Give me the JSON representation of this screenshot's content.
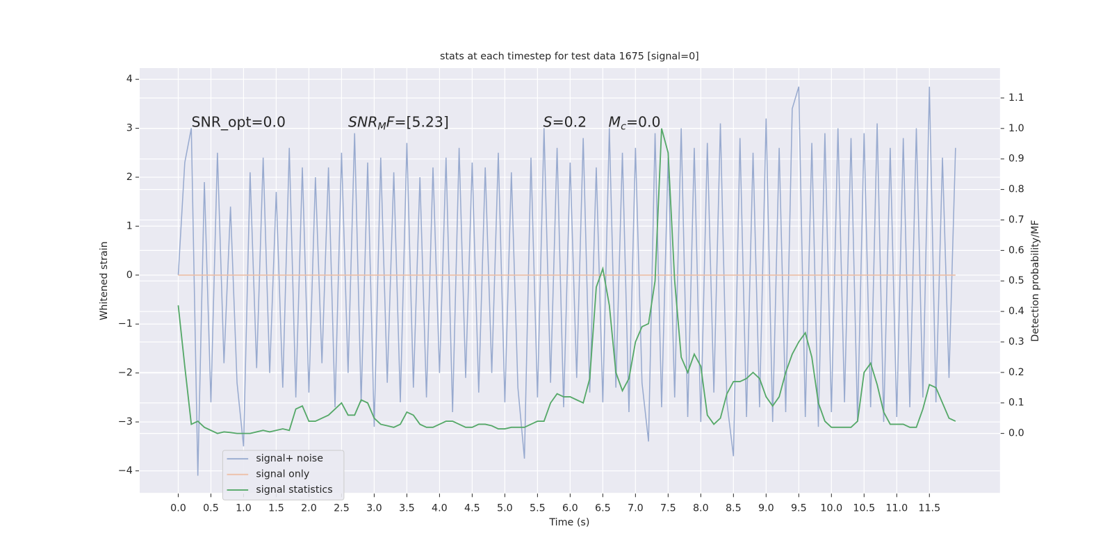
{
  "chart_data": {
    "type": "line",
    "title": "stats at each timestep for test data 1675 [signal=0]",
    "xlabel": "Time (s)",
    "ylabel": "Whitened strain",
    "y2label": "Detection probability/MF",
    "annotations": [
      {
        "text": "SNR_opt=0.0"
      },
      {
        "parts": [
          {
            "text": "SNR",
            "italic": true
          },
          {
            "text": "M",
            "italic": true,
            "sub": true
          },
          {
            "text": "F",
            "italic": true
          },
          {
            "text": "=[5.23]"
          }
        ]
      },
      {
        "parts": [
          {
            "text": "S",
            "italic": true
          },
          {
            "text": "=0.2"
          }
        ]
      },
      {
        "parts": [
          {
            "text": "M",
            "italic": true
          },
          {
            "text": "c",
            "italic": true,
            "sub": true
          },
          {
            "text": "=0.0"
          }
        ]
      }
    ],
    "xlim": [
      -0.59,
      12.58
    ],
    "ylim": [
      -4.45,
      4.23
    ],
    "y2lim": [
      -0.195,
      1.198
    ],
    "xticks": [
      {
        "value": 0,
        "label": "0.0"
      },
      0.5,
      {
        "value": 1,
        "label": "1.0"
      },
      1.5,
      {
        "value": 2,
        "label": "2.0"
      },
      2.5,
      {
        "value": 3,
        "label": "3.0"
      },
      3.5,
      {
        "value": 4,
        "label": "4.0"
      },
      4.5,
      {
        "value": 5,
        "label": "5.0"
      },
      5.5,
      {
        "value": 6,
        "label": "6.0"
      },
      6.5,
      {
        "value": 7,
        "label": "7.0"
      },
      7.5,
      {
        "value": 8,
        "label": "8.0"
      },
      8.5,
      {
        "value": 9,
        "label": "9.0"
      },
      9.5,
      {
        "value": 10,
        "label": "10.0"
      },
      10.5,
      {
        "value": 11,
        "label": "11.0"
      },
      11.5
    ],
    "yticks": [
      {
        "value": -4,
        "label": "−4"
      },
      {
        "value": -3,
        "label": "−3"
      },
      {
        "value": -2,
        "label": "−2"
      },
      {
        "value": -1,
        "label": "−1"
      },
      0,
      1,
      2,
      3,
      4
    ],
    "y2ticks": [
      {
        "value": 0,
        "label": "0.0"
      },
      0.1,
      0.2,
      0.3,
      0.4,
      0.5,
      0.6,
      0.7,
      0.8,
      0.9,
      {
        "value": 1,
        "label": "1.0"
      },
      1.1
    ],
    "grid": true,
    "legend": "lower left",
    "x": [
      0.0,
      0.1,
      0.2,
      0.3,
      0.4,
      0.5,
      0.6,
      0.7,
      0.8,
      0.9,
      1.0,
      1.1,
      1.2,
      1.3,
      1.4,
      1.5,
      1.6,
      1.7,
      1.8,
      1.9,
      2.0,
      2.1,
      2.2,
      2.3,
      2.4,
      2.5,
      2.6,
      2.7,
      2.8,
      2.9,
      3.0,
      3.1,
      3.2,
      3.3,
      3.4,
      3.5,
      3.6,
      3.7,
      3.8,
      3.9,
      4.0,
      4.1,
      4.2,
      4.3,
      4.4,
      4.5,
      4.6,
      4.7,
      4.8,
      4.9,
      5.0,
      5.1,
      5.2,
      5.3,
      5.4,
      5.5,
      5.6,
      5.7,
      5.8,
      5.9,
      6.0,
      6.1,
      6.2,
      6.3,
      6.4,
      6.5,
      6.6,
      6.7,
      6.8,
      6.9,
      7.0,
      7.1,
      7.2,
      7.3,
      7.4,
      7.5,
      7.6,
      7.7,
      7.8,
      7.9,
      8.0,
      8.1,
      8.2,
      8.3,
      8.4,
      8.5,
      8.6,
      8.7,
      8.8,
      8.9,
      9.0,
      9.1,
      9.2,
      9.3,
      9.4,
      9.5,
      9.6,
      9.7,
      9.8,
      9.9,
      10.0,
      10.1,
      10.2,
      10.3,
      10.4,
      10.5,
      10.6,
      10.7,
      10.8,
      10.9,
      11.0,
      11.1,
      11.2,
      11.3,
      11.4,
      11.5,
      11.6,
      11.7,
      11.8,
      11.9
    ],
    "series": [
      {
        "name": "signal+ noise",
        "color": "#98aacf",
        "values": [
          0.0,
          2.3,
          3.0,
          -4.1,
          1.9,
          -2.6,
          2.5,
          -1.8,
          1.4,
          -2.2,
          -3.5,
          2.1,
          -1.9,
          2.4,
          -2.0,
          1.7,
          -2.3,
          2.6,
          -2.5,
          2.2,
          -2.4,
          2.0,
          -1.8,
          2.2,
          -2.7,
          2.5,
          -2.0,
          2.9,
          -2.6,
          2.3,
          -3.1,
          2.4,
          -2.2,
          2.1,
          -2.6,
          2.7,
          -2.3,
          2.0,
          -2.5,
          2.2,
          -2.0,
          2.4,
          -2.8,
          2.6,
          -2.1,
          2.3,
          -2.4,
          2.2,
          -2.0,
          2.5,
          -2.6,
          2.1,
          -2.3,
          -3.75,
          2.4,
          -2.5,
          3.0,
          -2.2,
          2.6,
          -2.7,
          2.3,
          -2.1,
          2.8,
          -2.4,
          2.2,
          -2.6,
          3.0,
          -2.3,
          2.5,
          -2.8,
          2.6,
          -2.2,
          -3.4,
          2.9,
          -2.7,
          2.4,
          -2.5,
          3.0,
          -2.9,
          2.6,
          -3.0,
          2.7,
          -2.4,
          3.1,
          -2.6,
          -3.7,
          2.8,
          -2.9,
          2.5,
          -2.7,
          3.2,
          -3.0,
          2.6,
          -2.8,
          3.4,
          3.85,
          -2.9,
          2.7,
          -3.1,
          2.9,
          -2.8,
          3.0,
          -2.6,
          2.8,
          -3.0,
          2.9,
          -2.7,
          3.1,
          -3.0,
          2.6,
          -2.9,
          2.8,
          -2.7,
          3.0,
          -2.5,
          3.85,
          -2.6,
          2.4,
          -2.1,
          2.6
        ]
      },
      {
        "name": "signal only",
        "color": "#eebfa6",
        "values": [
          0,
          0,
          0,
          0,
          0,
          0,
          0,
          0,
          0,
          0,
          0,
          0,
          0,
          0,
          0,
          0,
          0,
          0,
          0,
          0,
          0,
          0,
          0,
          0,
          0,
          0,
          0,
          0,
          0,
          0,
          0,
          0,
          0,
          0,
          0,
          0,
          0,
          0,
          0,
          0,
          0,
          0,
          0,
          0,
          0,
          0,
          0,
          0,
          0,
          0,
          0,
          0,
          0,
          0,
          0,
          0,
          0,
          0,
          0,
          0,
          0,
          0,
          0,
          0,
          0,
          0,
          0,
          0,
          0,
          0,
          0,
          0,
          0,
          0,
          0,
          0,
          0,
          0,
          0,
          0,
          0,
          0,
          0,
          0,
          0,
          0,
          0,
          0,
          0,
          0,
          0,
          0,
          0,
          0,
          0,
          0,
          0,
          0,
          0,
          0,
          0,
          0,
          0,
          0,
          0,
          0,
          0,
          0,
          0,
          0,
          0,
          0,
          0,
          0,
          0,
          0,
          0,
          0,
          0,
          0
        ]
      },
      {
        "name": "signal statistics",
        "color": "#55a868",
        "axis": "y2",
        "values": [
          0.42,
          0.22,
          0.03,
          0.04,
          0.02,
          0.01,
          0.0,
          0.005,
          0.003,
          0.0,
          0.0,
          0.0,
          0.005,
          0.01,
          0.005,
          0.01,
          0.015,
          0.01,
          0.08,
          0.09,
          0.04,
          0.04,
          0.05,
          0.06,
          0.08,
          0.1,
          0.06,
          0.06,
          0.11,
          0.1,
          0.05,
          0.03,
          0.025,
          0.02,
          0.03,
          0.07,
          0.06,
          0.03,
          0.02,
          0.02,
          0.03,
          0.04,
          0.04,
          0.03,
          0.02,
          0.02,
          0.03,
          0.03,
          0.025,
          0.015,
          0.015,
          0.02,
          0.02,
          0.02,
          0.03,
          0.04,
          0.04,
          0.1,
          0.13,
          0.12,
          0.12,
          0.11,
          0.1,
          0.18,
          0.48,
          0.54,
          0.42,
          0.2,
          0.14,
          0.18,
          0.3,
          0.35,
          0.36,
          0.5,
          1.0,
          0.92,
          0.5,
          0.25,
          0.2,
          0.26,
          0.22,
          0.06,
          0.03,
          0.05,
          0.13,
          0.17,
          0.17,
          0.18,
          0.2,
          0.18,
          0.12,
          0.09,
          0.12,
          0.2,
          0.26,
          0.3,
          0.33,
          0.25,
          0.1,
          0.04,
          0.02,
          0.02,
          0.02,
          0.02,
          0.04,
          0.2,
          0.23,
          0.16,
          0.07,
          0.03,
          0.03,
          0.03,
          0.02,
          0.02,
          0.08,
          0.16,
          0.15,
          0.1,
          0.05,
          0.04
        ]
      }
    ]
  }
}
